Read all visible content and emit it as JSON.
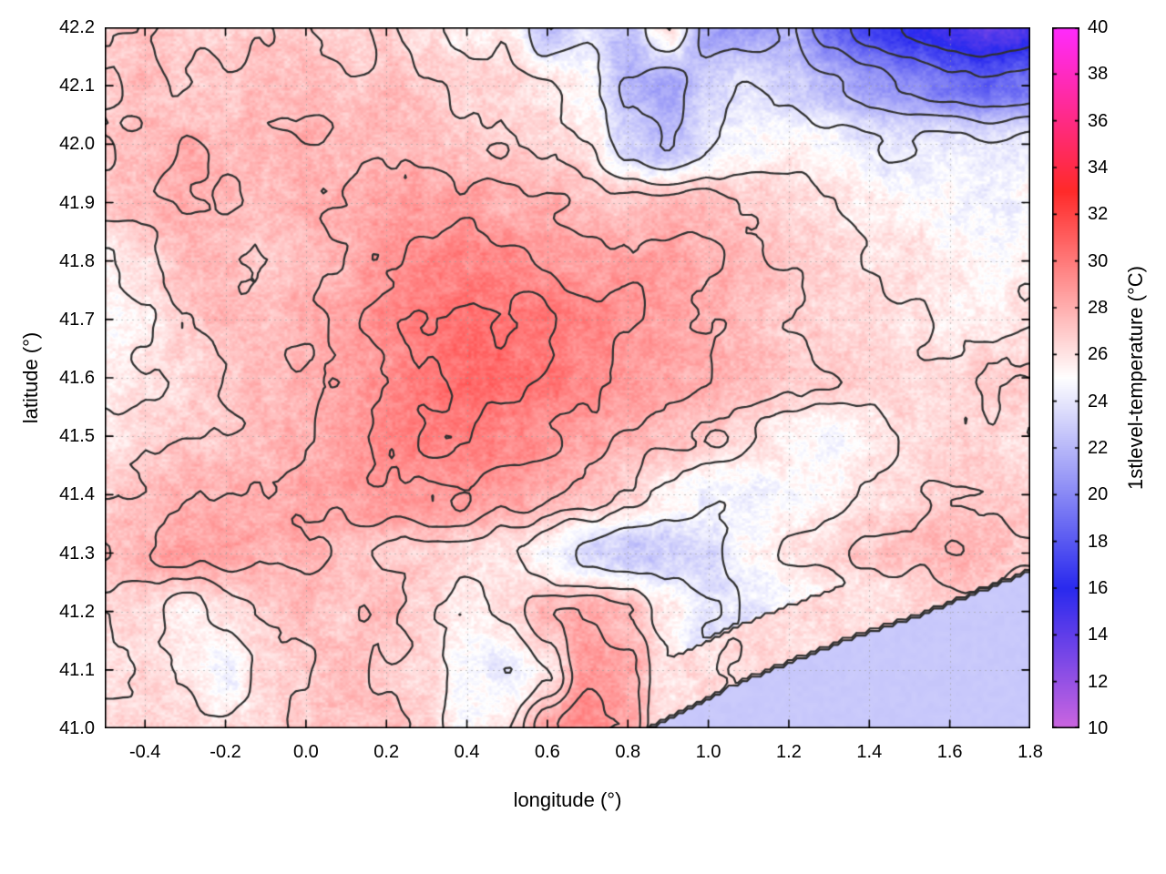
{
  "chart_data": {
    "type": "heatmap",
    "title": "",
    "xlabel": "longitude (°)",
    "ylabel": "latitude (°)",
    "x_range": [
      -0.5,
      1.8
    ],
    "y_range": [
      41.0,
      42.2
    ],
    "x_ticks": [
      "-0.4",
      "-0.2",
      "0.0",
      "0.2",
      "0.4",
      "0.6",
      "0.8",
      "1.0",
      "1.2",
      "1.4",
      "1.6",
      "1.8"
    ],
    "y_ticks": [
      "41.0",
      "41.1",
      "41.2",
      "41.3",
      "41.4",
      "41.5",
      "41.6",
      "41.7",
      "41.8",
      "41.9",
      "42.0",
      "42.1",
      "42.2"
    ],
    "grid": true,
    "contour_levels": [
      16,
      18,
      20,
      22,
      24,
      26,
      27,
      28,
      29,
      30
    ],
    "contour_color": "#303030",
    "grid_line_color": "#9a9a9a",
    "colorbar": {
      "label": "1stlevel-temperature (°C)",
      "min": 10,
      "max": 40,
      "ticks": [
        "10",
        "12",
        "14",
        "16",
        "18",
        "20",
        "22",
        "24",
        "26",
        "28",
        "30",
        "32",
        "34",
        "36",
        "38",
        "40"
      ],
      "palette": [
        {
          "value": 10,
          "color": "#cc66e0"
        },
        {
          "value": 16,
          "color": "#2a2aee"
        },
        {
          "value": 25,
          "color": "#ffffff"
        },
        {
          "value": 33,
          "color": "#ff2a2a"
        },
        {
          "value": 40,
          "color": "#ff2aff"
        }
      ]
    },
    "lon": [
      -0.5,
      -0.4,
      -0.3,
      -0.2,
      -0.1,
      0.0,
      0.1,
      0.2,
      0.3,
      0.4,
      0.5,
      0.6,
      0.7,
      0.8,
      0.9,
      1.0,
      1.1,
      1.2,
      1.3,
      1.4,
      1.5,
      1.6,
      1.7,
      1.8
    ],
    "lat": [
      41.0,
      41.1,
      41.2,
      41.3,
      41.4,
      41.5,
      41.6,
      41.7,
      41.8,
      41.9,
      42.0,
      42.1,
      42.2
    ],
    "temperature": [
      [
        26,
        26.5,
        26.5,
        26,
        26.5,
        27,
        27,
        27.5,
        26.5,
        25,
        26,
        28.5,
        29.5,
        28.5,
        25,
        23,
        23,
        23,
        23,
        23,
        23,
        23,
        23,
        23
      ],
      [
        26,
        26.5,
        26,
        24.5,
        26.5,
        27,
        27.5,
        27,
        26.5,
        25,
        24,
        26,
        29,
        28.5,
        26,
        23.5,
        23,
        23,
        23,
        23,
        23,
        23,
        23,
        23
      ],
      [
        26.5,
        26.5,
        25.5,
        26.5,
        27,
        27.5,
        27,
        27.5,
        26.5,
        25.5,
        26.5,
        27.5,
        28,
        27.5,
        25.5,
        24,
        24,
        24.5,
        25,
        25.5,
        26,
        26.5,
        26.5,
        26
      ],
      [
        27.5,
        28,
        28.5,
        28.5,
        28,
        28,
        27.5,
        27,
        27,
        26.5,
        26,
        25,
        23.5,
        22.5,
        23,
        23.5,
        25,
        26,
        26.5,
        27,
        27.5,
        28,
        27.5,
        27
      ],
      [
        27,
        27.5,
        28,
        28,
        28,
        28.5,
        28.5,
        29,
        29,
        29,
        28.5,
        28,
        27.5,
        26.5,
        25.5,
        24.5,
        24.5,
        25,
        25.5,
        26,
        26.5,
        27,
        27,
        26.5
      ],
      [
        26,
        26.5,
        27,
        27,
        27.5,
        28,
        28.5,
        29.5,
        30,
        30,
        29.5,
        29,
        28.5,
        28,
        27.5,
        27,
        26.5,
        25.5,
        24.5,
        25.5,
        26.5,
        26.5,
        26.5,
        26
      ],
      [
        25.5,
        26,
        26.5,
        27,
        27.5,
        28,
        28.5,
        29,
        30,
        30.5,
        30.5,
        30,
        29.5,
        29,
        28.5,
        28,
        27.5,
        27,
        27,
        26.5,
        26.5,
        26.5,
        27,
        27
      ],
      [
        25,
        25.5,
        27,
        27.5,
        27.5,
        28,
        28.5,
        29.5,
        30,
        30.5,
        30,
        30,
        29.5,
        29,
        28.5,
        28,
        27.5,
        27,
        26.5,
        26.5,
        26,
        25.5,
        25.5,
        26
      ],
      [
        25.5,
        26.5,
        27.5,
        27.5,
        27,
        27.5,
        28,
        29,
        29.5,
        29.5,
        29.5,
        29,
        28.5,
        28.5,
        28.5,
        28,
        27.5,
        27,
        26.5,
        26,
        26,
        25.5,
        25,
        25.5
      ],
      [
        27.5,
        27.5,
        28,
        28,
        27.5,
        28,
        28,
        28.5,
        28.5,
        28.5,
        28,
        28,
        27.5,
        27,
        27.5,
        27.5,
        27,
        26.5,
        26,
        25.5,
        25,
        25,
        24.5,
        25
      ],
      [
        27,
        27.5,
        28,
        27.5,
        27.5,
        28,
        27.5,
        27.5,
        27.5,
        27,
        27,
        26.5,
        26,
        23,
        22,
        24,
        25,
        25.5,
        25,
        24,
        24,
        24.5,
        24,
        24.5
      ],
      [
        27,
        27.5,
        27,
        27,
        27.5,
        27.5,
        27,
        27.5,
        27,
        26.5,
        26.5,
        26,
        25,
        22,
        21,
        23,
        24,
        23,
        22,
        21,
        20,
        19,
        18.5,
        19
      ],
      [
        27,
        27,
        26.5,
        26.5,
        27,
        27,
        26.5,
        27,
        26,
        25.5,
        26,
        22,
        24,
        22.5,
        26,
        21,
        21,
        22,
        19,
        17,
        16,
        15,
        14,
        15
      ]
    ],
    "sea": {
      "boundary_lon": [
        0.85,
        1.05,
        1.3,
        1.55,
        1.8
      ],
      "boundary_lat": [
        41.0,
        41.07,
        41.14,
        41.2,
        41.27
      ],
      "temperature": 22.7
    }
  }
}
